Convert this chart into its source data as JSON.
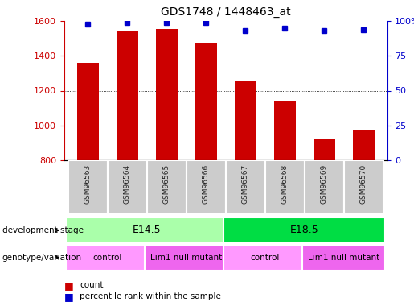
{
  "title": "GDS1748 / 1448463_at",
  "samples": [
    "GSM96563",
    "GSM96564",
    "GSM96565",
    "GSM96566",
    "GSM96567",
    "GSM96568",
    "GSM96569",
    "GSM96570"
  ],
  "counts": [
    1360,
    1540,
    1555,
    1475,
    1255,
    1140,
    920,
    975
  ],
  "percentile_ranks": [
    98,
    99,
    99,
    99,
    93,
    95,
    93,
    94
  ],
  "ylim_left": [
    800,
    1600
  ],
  "ylim_right": [
    0,
    100
  ],
  "yticks_left": [
    800,
    1000,
    1200,
    1400,
    1600
  ],
  "yticks_right": [
    0,
    25,
    50,
    75,
    100
  ],
  "bar_color": "#cc0000",
  "dot_color": "#0000cc",
  "development_stage_groups": [
    {
      "label": "E14.5",
      "start": 0,
      "end": 4,
      "color": "#aaffaa"
    },
    {
      "label": "E18.5",
      "start": 4,
      "end": 8,
      "color": "#00dd44"
    }
  ],
  "genotype_groups": [
    {
      "label": "control",
      "start": 0,
      "end": 2,
      "color": "#ff99ff"
    },
    {
      "label": "Lim1 null mutant",
      "start": 2,
      "end": 4,
      "color": "#ee66ee"
    },
    {
      "label": "control",
      "start": 4,
      "end": 6,
      "color": "#ff99ff"
    },
    {
      "label": "Lim1 null mutant",
      "start": 6,
      "end": 8,
      "color": "#ee66ee"
    }
  ],
  "bar_color_hex": "#cc0000",
  "dot_color_hex": "#0000cc",
  "tick_color_left": "#cc0000",
  "tick_color_right": "#0000cc",
  "sample_box_color": "#cccccc",
  "sample_box_edge": "#888888"
}
